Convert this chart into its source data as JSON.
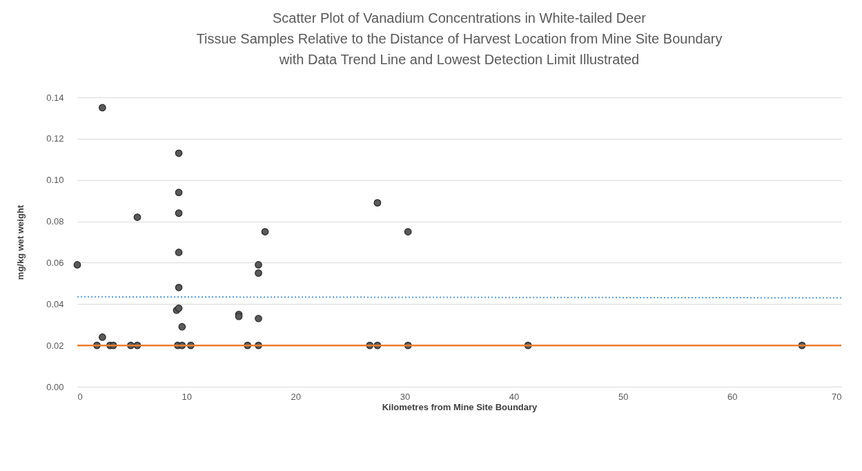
{
  "chart_data": {
    "type": "scatter",
    "title": "Scatter Plot of Vanadium Concentrations in White-tailed Deer\nTissue Samples Relative to the Distance of Harvest Location from Mine Site Boundary\nwith Data Trend Line and Lowest Detection Limit Illustrated",
    "xlabel": "Kilometres from Mine Site Boundary",
    "ylabel": "mg/kg wet weight",
    "xlim": [
      0,
      70
    ],
    "xticks": [
      0,
      10,
      20,
      30,
      40,
      50,
      60,
      70
    ],
    "ylim": [
      0,
      0.14
    ],
    "yticks": [
      {
        "value": 0,
        "label": "0.00"
      },
      0.02,
      0.04,
      0.06,
      0.08,
      {
        "value": 0.1,
        "label": "0.10"
      },
      0.12,
      0.14
    ],
    "grid": "y",
    "marker": "circle",
    "series": [
      {
        "type": "scatter",
        "color": "#595959",
        "x": [
          0,
          2.3,
          2.3,
          1.8,
          3.0,
          3.3,
          4.9,
          5.5,
          5.5,
          9.3,
          9.3,
          9.3,
          9.3,
          9.3,
          9.1,
          9.3,
          9.6,
          9.2,
          9.6,
          10.4,
          14.8,
          14.8,
          15.6,
          16.6,
          16.6,
          16.6,
          16.6,
          17.2,
          26.8,
          27.5,
          27.5,
          30.3,
          30.3,
          41.3,
          66.4
        ],
        "values": [
          0.059,
          0.135,
          0.024,
          0.02,
          0.02,
          0.02,
          0.02,
          0.02,
          0.082,
          0.113,
          0.094,
          0.084,
          0.065,
          0.048,
          0.037,
          0.038,
          0.029,
          0.02,
          0.02,
          0.02,
          0.035,
          0.034,
          0.02,
          0.059,
          0.055,
          0.033,
          0.02,
          0.075,
          0.02,
          0.02,
          0.089,
          0.075,
          0.02,
          0.02,
          0.02
        ]
      },
      {
        "type": "line",
        "color": "#5b9bd5",
        "line_style": "dotted",
        "marker": "none",
        "x": [
          0,
          70
        ],
        "values": [
          0.0435,
          0.043
        ]
      }
    ],
    "ref_lines": [
      {
        "axis": "y",
        "value": 0.02,
        "color": "#ed7d31",
        "line_style": "solid"
      }
    ]
  }
}
